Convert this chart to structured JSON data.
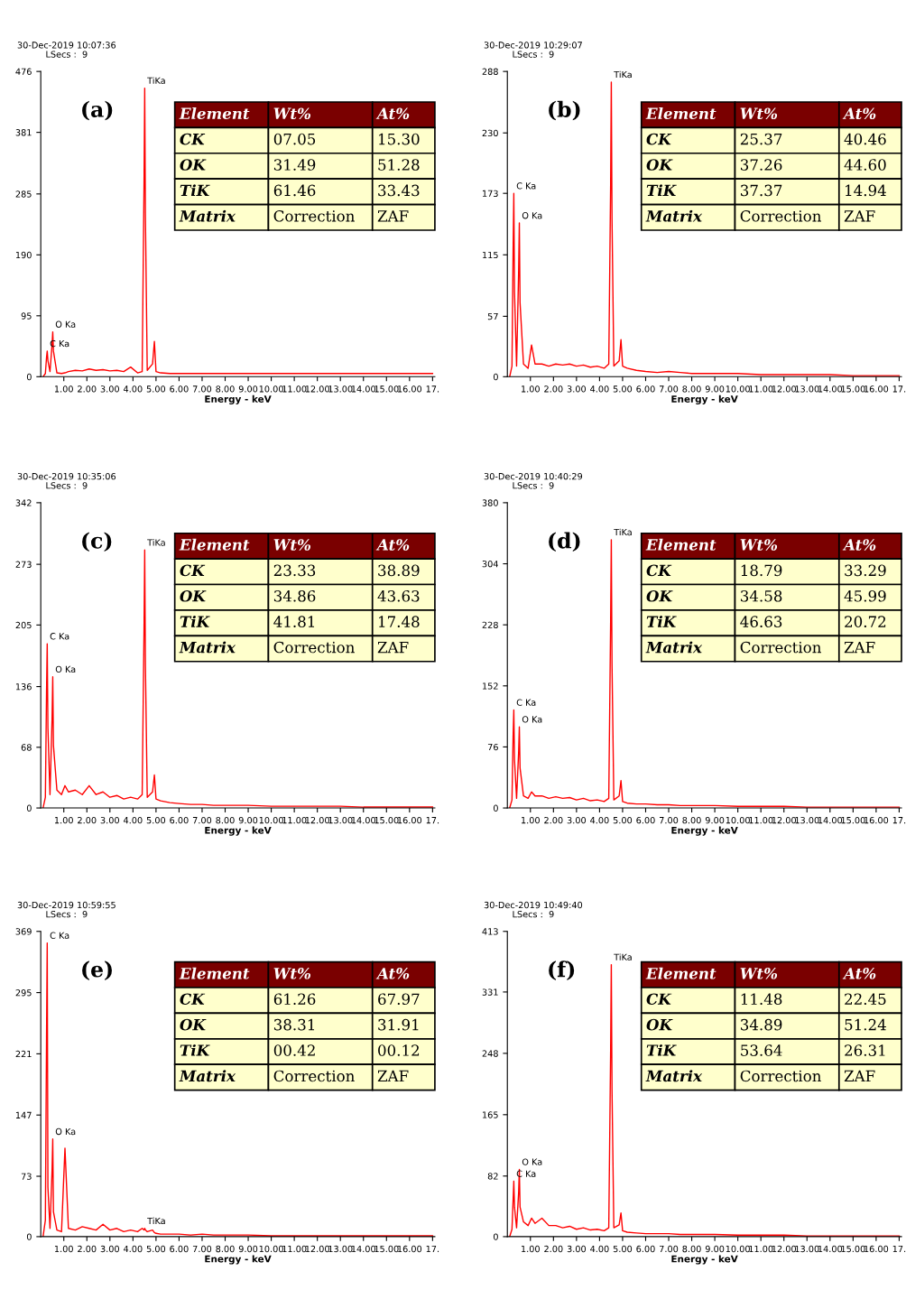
{
  "chart_data": [
    {
      "type": "line",
      "title": "(a)",
      "subtitle": "30-Dec-2019 10:07:36\nLSecs :  9",
      "xlabel": "Energy - keV",
      "x": [
        0.1,
        0.2,
        0.25,
        0.28,
        0.31,
        0.4,
        0.49,
        0.52,
        0.55,
        0.7,
        0.9,
        1.05,
        1.2,
        1.5,
        1.8,
        2.1,
        2.4,
        2.7,
        3.0,
        3.3,
        3.6,
        3.9,
        4.2,
        4.4,
        4.48,
        4.51,
        4.54,
        4.62,
        4.85,
        4.93,
        5.0,
        5.2,
        5.6,
        6.0,
        6.5,
        7.0,
        7.5,
        8.0,
        9.0,
        10.0,
        11.0,
        12.0,
        13.0,
        14.0,
        15.0,
        16.0,
        17.0
      ],
      "series": [
        {
          "color": "#ff0000",
          "values": [
            0,
            5,
            30,
            40,
            25,
            8,
            50,
            70,
            40,
            6,
            5,
            6,
            8,
            10,
            9,
            12,
            10,
            11,
            9,
            10,
            8,
            15,
            6,
            8,
            300,
            450,
            250,
            10,
            20,
            55,
            8,
            6,
            5,
            5,
            5,
            5,
            5,
            5,
            5,
            5,
            5,
            5,
            5,
            5,
            5,
            5,
            5
          ]
        }
      ],
      "xlim": [
        0,
        17.1
      ],
      "ylim": [
        0,
        476
      ],
      "xticks": [
        {
          "value": 1,
          "label": "1.00"
        },
        {
          "value": 2,
          "label": "2.00"
        },
        {
          "value": 3,
          "label": "3.00"
        },
        {
          "value": 4,
          "label": "4.00"
        },
        {
          "value": 5,
          "label": "5.00"
        },
        {
          "value": 6,
          "label": "6.00"
        },
        {
          "value": 7,
          "label": "7.00"
        },
        {
          "value": 8,
          "label": "8.00"
        },
        {
          "value": 9,
          "label": "9.00"
        },
        {
          "value": 10,
          "label": "10.00"
        },
        {
          "value": 11,
          "label": "11.00"
        },
        {
          "value": 12,
          "label": "12.00"
        },
        {
          "value": 13,
          "label": "13.00"
        },
        {
          "value": 14,
          "label": "14.00"
        },
        {
          "value": 15,
          "label": "15.00"
        },
        {
          "value": 16,
          "label": "16.00"
        },
        {
          "value": 17,
          "label": "17."
        }
      ],
      "yticks": [
        0,
        95,
        190,
        285,
        381,
        476
      ],
      "grid": false,
      "annotations": [
        {
          "text": "TiKa",
          "x": 4.51,
          "y": 450
        },
        {
          "text": "O Ka",
          "x": 0.52,
          "y": 70
        },
        {
          "text": "C Ka",
          "x": 0.28,
          "y": 40
        },
        "Element",
        "Wt%",
        "At%",
        "CK",
        "07.05",
        "15.30",
        "OK",
        "31.49",
        "51.28",
        "TiK",
        "61.46",
        "33.43",
        "Matrix",
        "Correction",
        "ZAF"
      ]
    },
    {
      "type": "line",
      "title": "(b)",
      "subtitle": "30-Dec-2019 10:29:07\nLSecs :  9",
      "xlabel": "Energy - keV",
      "x": [
        0.1,
        0.2,
        0.25,
        0.28,
        0.31,
        0.4,
        0.49,
        0.52,
        0.55,
        0.7,
        0.9,
        1.05,
        1.2,
        1.5,
        1.8,
        2.1,
        2.4,
        2.7,
        3.0,
        3.3,
        3.6,
        3.9,
        4.2,
        4.4,
        4.48,
        4.51,
        4.54,
        4.62,
        4.85,
        4.93,
        5.0,
        5.2,
        5.6,
        6.0,
        6.5,
        7.0,
        7.5,
        8.0,
        9.0,
        10.0,
        11.0,
        12.0,
        13.0,
        14.0,
        15.0,
        16.0,
        17.0
      ],
      "series": [
        {
          "color": "#ff0000",
          "values": [
            0,
            10,
            120,
            173,
            80,
            10,
            100,
            145,
            70,
            12,
            8,
            30,
            12,
            12,
            10,
            12,
            11,
            12,
            10,
            11,
            9,
            10,
            8,
            12,
            180,
            278,
            150,
            10,
            15,
            35,
            10,
            8,
            6,
            5,
            4,
            5,
            4,
            3,
            3,
            3,
            2,
            2,
            2,
            2,
            1,
            1,
            1
          ]
        }
      ],
      "xlim": [
        0,
        17.1
      ],
      "ylim": [
        0,
        288
      ],
      "xticks": [
        {
          "value": 1,
          "label": "1.00"
        },
        {
          "value": 2,
          "label": "2.00"
        },
        {
          "value": 3,
          "label": "3.00"
        },
        {
          "value": 4,
          "label": "4.00"
        },
        {
          "value": 5,
          "label": "5.00"
        },
        {
          "value": 6,
          "label": "6.00"
        },
        {
          "value": 7,
          "label": "7.00"
        },
        {
          "value": 8,
          "label": "8.00"
        },
        {
          "value": 9,
          "label": "9.00"
        },
        {
          "value": 10,
          "label": "10.00"
        },
        {
          "value": 11,
          "label": "11.00"
        },
        {
          "value": 12,
          "label": "12.00"
        },
        {
          "value": 13,
          "label": "13.00"
        },
        {
          "value": 14,
          "label": "14.00"
        },
        {
          "value": 15,
          "label": "15.00"
        },
        {
          "value": 16,
          "label": "16.00"
        },
        {
          "value": 17,
          "label": "17."
        }
      ],
      "yticks": [
        0,
        57,
        115,
        173,
        230,
        288
      ],
      "grid": false,
      "annotations": [
        {
          "text": "TiKa",
          "x": 4.51,
          "y": 278
        },
        {
          "text": "O Ka",
          "x": 0.52,
          "y": 145
        },
        {
          "text": "C Ka",
          "x": 0.28,
          "y": 173
        },
        "Element",
        "Wt%",
        "At%",
        "CK",
        "25.37",
        "40.46",
        "OK",
        "37.26",
        "44.60",
        "TiK",
        "37.37",
        "14.94",
        "Matrix",
        "Correction",
        "ZAF"
      ]
    },
    {
      "type": "line",
      "title": "(c)",
      "subtitle": "30-Dec-2019 10:35:06\nLSecs :  9",
      "xlabel": "Energy - keV",
      "x": [
        0.1,
        0.2,
        0.25,
        0.28,
        0.31,
        0.4,
        0.49,
        0.52,
        0.55,
        0.7,
        0.9,
        1.05,
        1.2,
        1.5,
        1.8,
        2.1,
        2.4,
        2.7,
        3.0,
        3.3,
        3.6,
        3.9,
        4.2,
        4.4,
        4.48,
        4.51,
        4.54,
        4.62,
        4.85,
        4.93,
        5.0,
        5.2,
        5.6,
        6.0,
        6.5,
        7.0,
        7.5,
        8.0,
        9.0,
        10.0,
        11.0,
        12.0,
        13.0,
        14.0,
        15.0,
        16.0,
        17.0
      ],
      "series": [
        {
          "color": "#ff0000",
          "values": [
            0,
            12,
            130,
            184,
            90,
            15,
            100,
            147,
            70,
            20,
            15,
            25,
            18,
            20,
            15,
            25,
            15,
            18,
            12,
            14,
            10,
            12,
            10,
            15,
            200,
            289,
            160,
            12,
            18,
            37,
            10,
            8,
            6,
            5,
            4,
            4,
            3,
            3,
            3,
            2,
            2,
            2,
            2,
            1,
            1,
            1,
            1
          ]
        }
      ],
      "xlim": [
        0,
        17.1
      ],
      "ylim": [
        0,
        342
      ],
      "xticks": [
        {
          "value": 1,
          "label": "1.00"
        },
        {
          "value": 2,
          "label": "2.00"
        },
        {
          "value": 3,
          "label": "3.00"
        },
        {
          "value": 4,
          "label": "4.00"
        },
        {
          "value": 5,
          "label": "5.00"
        },
        {
          "value": 6,
          "label": "6.00"
        },
        {
          "value": 7,
          "label": "7.00"
        },
        {
          "value": 8,
          "label": "8.00"
        },
        {
          "value": 9,
          "label": "9.00"
        },
        {
          "value": 10,
          "label": "10.00"
        },
        {
          "value": 11,
          "label": "11.00"
        },
        {
          "value": 12,
          "label": "12.00"
        },
        {
          "value": 13,
          "label": "13.00"
        },
        {
          "value": 14,
          "label": "14.00"
        },
        {
          "value": 15,
          "label": "15.00"
        },
        {
          "value": 16,
          "label": "16.00"
        },
        {
          "value": 17,
          "label": "17."
        }
      ],
      "yticks": [
        0,
        68,
        136,
        205,
        273,
        342
      ],
      "grid": false,
      "annotations": [
        {
          "text": "TiKa",
          "x": 4.51,
          "y": 289
        },
        {
          "text": "O Ka",
          "x": 0.52,
          "y": 147
        },
        {
          "text": "C Ka",
          "x": 0.28,
          "y": 184
        },
        "Element",
        "Wt%",
        "At%",
        "CK",
        "23.33",
        "38.89",
        "OK",
        "34.86",
        "43.63",
        "TiK",
        "41.81",
        "17.48",
        "Matrix",
        "Correction",
        "ZAF"
      ]
    },
    {
      "type": "line",
      "title": "(d)",
      "subtitle": "30-Dec-2019 10:40:29\nLSecs :  9",
      "xlabel": "Energy - keV",
      "x": [
        0.1,
        0.2,
        0.25,
        0.28,
        0.31,
        0.4,
        0.49,
        0.52,
        0.55,
        0.7,
        0.9,
        1.05,
        1.2,
        1.5,
        1.8,
        2.1,
        2.4,
        2.7,
        3.0,
        3.3,
        3.6,
        3.9,
        4.2,
        4.4,
        4.48,
        4.51,
        4.54,
        4.62,
        4.85,
        4.93,
        5.0,
        5.2,
        5.6,
        6.0,
        6.5,
        7.0,
        7.5,
        8.0,
        9.0,
        10.0,
        11.0,
        12.0,
        13.0,
        14.0,
        15.0,
        16.0,
        17.0
      ],
      "series": [
        {
          "color": "#ff0000",
          "values": [
            0,
            10,
            90,
            122,
            60,
            12,
            70,
            101,
            50,
            15,
            12,
            20,
            15,
            15,
            12,
            14,
            12,
            13,
            10,
            12,
            9,
            10,
            8,
            12,
            230,
            334,
            180,
            10,
            15,
            34,
            8,
            6,
            5,
            5,
            4,
            4,
            3,
            3,
            3,
            2,
            2,
            2,
            1,
            1,
            1,
            1,
            1
          ]
        }
      ],
      "xlim": [
        0,
        17.1
      ],
      "ylim": [
        0,
        380
      ],
      "xticks": [
        {
          "value": 1,
          "label": "1.00"
        },
        {
          "value": 2,
          "label": "2.00"
        },
        {
          "value": 3,
          "label": "3.00"
        },
        {
          "value": 4,
          "label": "4.00"
        },
        {
          "value": 5,
          "label": "5.00"
        },
        {
          "value": 6,
          "label": "6.00"
        },
        {
          "value": 7,
          "label": "7.00"
        },
        {
          "value": 8,
          "label": "8.00"
        },
        {
          "value": 9,
          "label": "9.00"
        },
        {
          "value": 10,
          "label": "10.00"
        },
        {
          "value": 11,
          "label": "11.00"
        },
        {
          "value": 12,
          "label": "12.00"
        },
        {
          "value": 13,
          "label": "13.00"
        },
        {
          "value": 14,
          "label": "14.00"
        },
        {
          "value": 15,
          "label": "15.00"
        },
        {
          "value": 16,
          "label": "16.00"
        },
        {
          "value": 17,
          "label": "17."
        }
      ],
      "yticks": [
        0,
        76,
        152,
        228,
        304,
        380
      ],
      "grid": false,
      "annotations": [
        {
          "text": "TiKa",
          "x": 4.51,
          "y": 334
        },
        {
          "text": "O Ka",
          "x": 0.52,
          "y": 101
        },
        {
          "text": "C Ka",
          "x": 0.28,
          "y": 122
        },
        "Element",
        "Wt%",
        "At%",
        "CK",
        "18.79",
        "33.29",
        "OK",
        "34.58",
        "45.99",
        "TiK",
        "46.63",
        "20.72",
        "Matrix",
        "Correction",
        "ZAF"
      ]
    },
    {
      "type": "line",
      "title": "(e)",
      "subtitle": "30-Dec-2019 10:59:55\nLSecs :  9",
      "xlabel": "Energy - keV",
      "x": [
        0.1,
        0.2,
        0.25,
        0.28,
        0.31,
        0.4,
        0.49,
        0.52,
        0.55,
        0.7,
        0.9,
        1.05,
        1.2,
        1.5,
        1.8,
        2.1,
        2.4,
        2.7,
        3.0,
        3.3,
        3.6,
        3.9,
        4.2,
        4.4,
        4.48,
        4.51,
        4.54,
        4.62,
        4.85,
        4.93,
        5.0,
        5.2,
        5.6,
        6.0,
        6.5,
        7.0,
        7.5,
        8.0,
        9.0,
        10.0,
        11.0,
        12.0,
        13.0,
        14.0,
        15.0,
        16.0,
        17.0
      ],
      "series": [
        {
          "color": "#ff0000",
          "values": [
            0,
            20,
            240,
            355,
            60,
            10,
            80,
            118,
            30,
            8,
            6,
            107,
            10,
            8,
            12,
            10,
            8,
            15,
            8,
            10,
            6,
            8,
            6,
            10,
            8,
            10,
            8,
            6,
            8,
            5,
            4,
            3,
            3,
            3,
            2,
            3,
            2,
            2,
            2,
            1,
            1,
            1,
            1,
            1,
            1,
            1,
            1
          ]
        }
      ],
      "xlim": [
        0,
        17.1
      ],
      "ylim": [
        0,
        369
      ],
      "xticks": [
        {
          "value": 1,
          "label": "1.00"
        },
        {
          "value": 2,
          "label": "2.00"
        },
        {
          "value": 3,
          "label": "3.00"
        },
        {
          "value": 4,
          "label": "4.00"
        },
        {
          "value": 5,
          "label": "5.00"
        },
        {
          "value": 6,
          "label": "6.00"
        },
        {
          "value": 7,
          "label": "7.00"
        },
        {
          "value": 8,
          "label": "8.00"
        },
        {
          "value": 9,
          "label": "9.00"
        },
        {
          "value": 10,
          "label": "10.00"
        },
        {
          "value": 11,
          "label": "11.00"
        },
        {
          "value": 12,
          "label": "12.00"
        },
        {
          "value": 13,
          "label": "13.00"
        },
        {
          "value": 14,
          "label": "14.00"
        },
        {
          "value": 15,
          "label": "15.00"
        },
        {
          "value": 16,
          "label": "16.00"
        },
        {
          "value": 17,
          "label": "17."
        }
      ],
      "yticks": [
        0,
        73,
        147,
        221,
        295,
        369
      ],
      "grid": false,
      "annotations": [
        {
          "text": "TiKa",
          "x": 4.51,
          "y": 10
        },
        {
          "text": "O Ka",
          "x": 0.52,
          "y": 118
        },
        {
          "text": "C Ka",
          "x": 0.28,
          "y": 355
        },
        "Element",
        "Wt%",
        "At%",
        "CK",
        "61.26",
        "67.97",
        "OK",
        "38.31",
        "31.91",
        "TiK",
        "00.42",
        "00.12",
        "Matrix",
        "Correction",
        "ZAF"
      ]
    },
    {
      "type": "line",
      "title": "(f)",
      "subtitle": "30-Dec-2019 10:49:40\nLSecs :  9",
      "xlabel": "Energy - keV",
      "x": [
        0.1,
        0.2,
        0.25,
        0.28,
        0.31,
        0.4,
        0.49,
        0.52,
        0.55,
        0.7,
        0.9,
        1.05,
        1.2,
        1.5,
        1.8,
        2.1,
        2.4,
        2.7,
        3.0,
        3.3,
        3.6,
        3.9,
        4.2,
        4.4,
        4.48,
        4.51,
        4.54,
        4.62,
        4.85,
        4.93,
        5.0,
        5.2,
        5.6,
        6.0,
        6.5,
        7.0,
        7.5,
        8.0,
        9.0,
        10.0,
        11.0,
        12.0,
        13.0,
        14.0,
        15.0,
        16.0,
        17.0
      ],
      "series": [
        {
          "color": "#ff0000",
          "values": [
            0,
            10,
            50,
            75,
            40,
            12,
            60,
            91,
            40,
            20,
            15,
            25,
            18,
            25,
            15,
            15,
            12,
            14,
            10,
            12,
            9,
            10,
            8,
            12,
            250,
            368,
            200,
            12,
            16,
            32,
            8,
            6,
            5,
            4,
            4,
            4,
            3,
            3,
            3,
            2,
            2,
            2,
            1,
            1,
            1,
            1,
            1
          ]
        }
      ],
      "xlim": [
        0,
        17.1
      ],
      "ylim": [
        0,
        413
      ],
      "xticks": [
        {
          "value": 1,
          "label": "1.00"
        },
        {
          "value": 2,
          "label": "2.00"
        },
        {
          "value": 3,
          "label": "3.00"
        },
        {
          "value": 4,
          "label": "4.00"
        },
        {
          "value": 5,
          "label": "5.00"
        },
        {
          "value": 6,
          "label": "6.00"
        },
        {
          "value": 7,
          "label": "7.00"
        },
        {
          "value": 8,
          "label": "8.00"
        },
        {
          "value": 9,
          "label": "9.00"
        },
        {
          "value": 10,
          "label": "10.00"
        },
        {
          "value": 11,
          "label": "11.00"
        },
        {
          "value": 12,
          "label": "12.00"
        },
        {
          "value": 13,
          "label": "13.00"
        },
        {
          "value": 14,
          "label": "14.00"
        },
        {
          "value": 15,
          "label": "15.00"
        },
        {
          "value": 16,
          "label": "16.00"
        },
        {
          "value": 17,
          "label": "17."
        }
      ],
      "yticks": [
        0,
        82,
        165,
        248,
        331,
        413
      ],
      "grid": false,
      "annotations": [
        {
          "text": "TiKa",
          "x": 4.51,
          "y": 368
        },
        {
          "text": "O Ka",
          "x": 0.52,
          "y": 91
        },
        {
          "text": "C Ka",
          "x": 0.28,
          "y": 75
        },
        "Element",
        "Wt%",
        "At%",
        "CK",
        "11.48",
        "22.45",
        "OK",
        "34.89",
        "51.24",
        "TiK",
        "53.64",
        "26.31",
        "Matrix",
        "Correction",
        "ZAF"
      ]
    }
  ]
}
